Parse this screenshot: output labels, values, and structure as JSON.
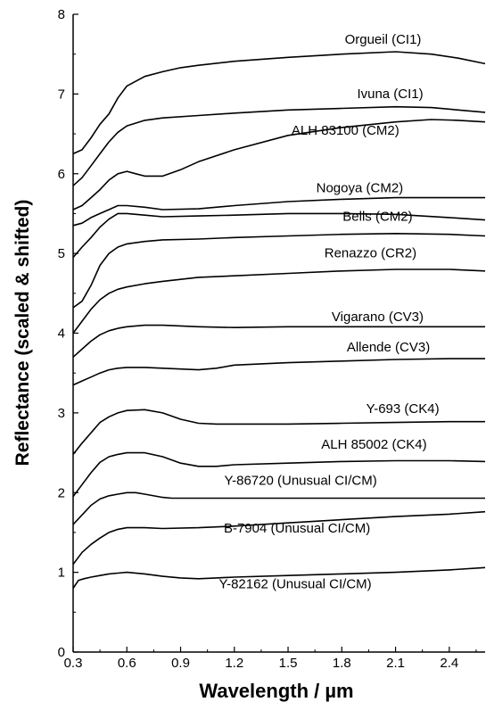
{
  "chart_data": {
    "type": "line",
    "xlabel": "Wavelength / µm",
    "ylabel": "Reflectance (scaled & shifted)",
    "xlim": [
      0.3,
      2.6
    ],
    "ylim": [
      0,
      8
    ],
    "x_ticks": [
      "0.3",
      "0.6",
      "0.9",
      "1.2",
      "1.5",
      "1.8",
      "2.1",
      "2.4"
    ],
    "x_tick_values": [
      0.3,
      0.6,
      0.9,
      1.2,
      1.5,
      1.8,
      2.1,
      2.4
    ],
    "y_ticks": [
      "0",
      "1",
      "2",
      "3",
      "4",
      "5",
      "6",
      "7",
      "8"
    ],
    "y_tick_values": [
      0,
      1,
      2,
      3,
      4,
      5,
      6,
      7,
      8
    ],
    "grid": false,
    "legend": "none",
    "series": [
      {
        "name": "Orgueil (CI1)",
        "label_at": [
          2.03,
          7.63
        ],
        "x": [
          0.3,
          0.35,
          0.4,
          0.45,
          0.5,
          0.55,
          0.6,
          0.7,
          0.8,
          0.9,
          1.0,
          1.2,
          1.5,
          1.8,
          2.1,
          2.3,
          2.45,
          2.6
        ],
        "y": [
          6.25,
          6.3,
          6.45,
          6.62,
          6.75,
          6.95,
          7.1,
          7.22,
          7.28,
          7.33,
          7.36,
          7.41,
          7.46,
          7.5,
          7.53,
          7.5,
          7.45,
          7.38
        ]
      },
      {
        "name": "Ivuna (CI1)",
        "label_at": [
          2.07,
          6.95
        ],
        "x": [
          0.3,
          0.35,
          0.4,
          0.45,
          0.5,
          0.55,
          0.6,
          0.7,
          0.8,
          1.0,
          1.2,
          1.5,
          1.8,
          2.1,
          2.3,
          2.45,
          2.6
        ],
        "y": [
          5.85,
          5.95,
          6.1,
          6.25,
          6.4,
          6.52,
          6.6,
          6.67,
          6.7,
          6.73,
          6.76,
          6.8,
          6.82,
          6.84,
          6.83,
          6.8,
          6.77
        ]
      },
      {
        "name": "ALH 83100 (CM2)",
        "label_at": [
          1.82,
          6.49
        ],
        "x": [
          0.3,
          0.35,
          0.4,
          0.45,
          0.5,
          0.55,
          0.6,
          0.65,
          0.7,
          0.8,
          0.9,
          1.0,
          1.2,
          1.5,
          1.8,
          2.1,
          2.3,
          2.45,
          2.6
        ],
        "y": [
          5.55,
          5.6,
          5.7,
          5.8,
          5.92,
          6.0,
          6.03,
          6.0,
          5.97,
          5.97,
          6.05,
          6.15,
          6.3,
          6.48,
          6.58,
          6.65,
          6.68,
          6.67,
          6.65
        ]
      },
      {
        "name": "Nogoya (CM2)",
        "label_at": [
          1.9,
          5.77
        ],
        "x": [
          0.3,
          0.35,
          0.4,
          0.45,
          0.5,
          0.55,
          0.6,
          0.7,
          0.8,
          1.0,
          1.2,
          1.5,
          1.8,
          2.1,
          2.3,
          2.6
        ],
        "y": [
          5.35,
          5.38,
          5.45,
          5.5,
          5.55,
          5.6,
          5.6,
          5.58,
          5.55,
          5.56,
          5.6,
          5.65,
          5.68,
          5.7,
          5.7,
          5.7
        ]
      },
      {
        "name": "Bells (CM2)",
        "label_at": [
          2.0,
          5.41
        ],
        "x": [
          0.3,
          0.35,
          0.4,
          0.45,
          0.5,
          0.55,
          0.6,
          0.7,
          0.8,
          1.0,
          1.2,
          1.5,
          1.8,
          2.1,
          2.4,
          2.6
        ],
        "y": [
          4.95,
          5.08,
          5.2,
          5.33,
          5.43,
          5.5,
          5.5,
          5.48,
          5.46,
          5.47,
          5.48,
          5.5,
          5.5,
          5.49,
          5.45,
          5.42
        ]
      },
      {
        "name": "Renazzo (CR2)",
        "label_at": [
          1.96,
          4.95
        ],
        "x": [
          0.3,
          0.35,
          0.4,
          0.45,
          0.5,
          0.55,
          0.6,
          0.7,
          0.8,
          1.0,
          1.2,
          1.5,
          1.8,
          2.1,
          2.4,
          2.6
        ],
        "y": [
          4.32,
          4.4,
          4.6,
          4.85,
          5.0,
          5.08,
          5.12,
          5.15,
          5.17,
          5.18,
          5.2,
          5.22,
          5.24,
          5.25,
          5.24,
          5.22
        ]
      },
      {
        "name": "Vigarano (CV3)",
        "label_at": [
          2.0,
          4.15
        ],
        "x": [
          0.3,
          0.35,
          0.4,
          0.45,
          0.5,
          0.55,
          0.6,
          0.7,
          0.8,
          1.0,
          1.2,
          1.5,
          1.8,
          2.1,
          2.4,
          2.6
        ],
        "y": [
          4.0,
          4.15,
          4.3,
          4.42,
          4.5,
          4.55,
          4.58,
          4.62,
          4.65,
          4.7,
          4.72,
          4.75,
          4.78,
          4.8,
          4.8,
          4.78
        ]
      },
      {
        "name": "Allende (CV3)",
        "label_at": [
          2.06,
          3.77
        ],
        "x": [
          0.3,
          0.35,
          0.4,
          0.45,
          0.5,
          0.55,
          0.6,
          0.7,
          0.8,
          1.0,
          1.2,
          1.5,
          1.8,
          2.1,
          2.4,
          2.6
        ],
        "y": [
          3.7,
          3.8,
          3.9,
          3.98,
          4.03,
          4.06,
          4.08,
          4.1,
          4.1,
          4.08,
          4.07,
          4.08,
          4.08,
          4.08,
          4.08,
          4.08
        ]
      },
      {
        "name": "Y-693 (CK4)",
        "label_at": [
          2.14,
          3.0
        ],
        "x": [
          0.3,
          0.35,
          0.4,
          0.45,
          0.5,
          0.55,
          0.6,
          0.7,
          0.8,
          0.9,
          1.0,
          1.1,
          1.2,
          1.5,
          1.8,
          2.1,
          2.4,
          2.6
        ],
        "y": [
          3.35,
          3.4,
          3.45,
          3.5,
          3.54,
          3.56,
          3.57,
          3.57,
          3.56,
          3.55,
          3.54,
          3.56,
          3.6,
          3.63,
          3.65,
          3.67,
          3.68,
          3.68
        ]
      },
      {
        "name": "ALH 85002 (CK4)",
        "label_at": [
          1.98,
          2.55
        ],
        "x": [
          0.3,
          0.35,
          0.4,
          0.45,
          0.5,
          0.55,
          0.6,
          0.7,
          0.8,
          0.9,
          1.0,
          1.1,
          1.2,
          1.5,
          1.8,
          2.1,
          2.4,
          2.6
        ],
        "y": [
          2.48,
          2.62,
          2.75,
          2.88,
          2.95,
          3.0,
          3.03,
          3.04,
          3.0,
          2.92,
          2.87,
          2.86,
          2.86,
          2.86,
          2.87,
          2.88,
          2.89,
          2.89
        ]
      },
      {
        "name": "Y-86720 (Unusual CI/CM)",
        "label_at": [
          1.57,
          2.1
        ],
        "x": [
          0.3,
          0.35,
          0.4,
          0.45,
          0.5,
          0.55,
          0.6,
          0.7,
          0.8,
          0.9,
          1.0,
          1.1,
          1.2,
          1.5,
          1.8,
          2.1,
          2.4,
          2.6
        ],
        "y": [
          1.95,
          2.1,
          2.25,
          2.38,
          2.45,
          2.48,
          2.5,
          2.5,
          2.45,
          2.37,
          2.33,
          2.33,
          2.35,
          2.37,
          2.39,
          2.4,
          2.4,
          2.39
        ]
      },
      {
        "name": "B-7904 (Unusual CI/CM)",
        "label_at": [
          1.55,
          1.5
        ],
        "x": [
          0.3,
          0.35,
          0.4,
          0.45,
          0.5,
          0.55,
          0.6,
          0.65,
          0.7,
          0.8,
          0.85,
          1.0,
          1.2,
          1.5,
          1.8,
          2.1,
          2.4,
          2.6
        ],
        "y": [
          1.6,
          1.72,
          1.84,
          1.92,
          1.96,
          1.98,
          2.0,
          2.0,
          1.98,
          1.94,
          1.93,
          1.93,
          1.93,
          1.93,
          1.93,
          1.93,
          1.93,
          1.93
        ]
      },
      {
        "name": "Y-82162 (Unusual CI/CM)",
        "label_at": [
          1.54,
          0.8
        ],
        "x": [
          0.3,
          0.35,
          0.4,
          0.45,
          0.5,
          0.55,
          0.6,
          0.7,
          0.8,
          1.0,
          1.2,
          1.5,
          1.8,
          2.1,
          2.4,
          2.6
        ],
        "y": [
          1.1,
          1.25,
          1.35,
          1.43,
          1.5,
          1.54,
          1.56,
          1.56,
          1.55,
          1.56,
          1.58,
          1.62,
          1.66,
          1.7,
          1.73,
          1.76
        ]
      },
      {
        "name": "",
        "label_at": null,
        "x": [
          0.3,
          0.33,
          0.36,
          0.4,
          0.45,
          0.5,
          0.55,
          0.6,
          0.7,
          0.8,
          0.9,
          1.0,
          1.1,
          1.2,
          1.5,
          1.8,
          2.1,
          2.4,
          2.6
        ],
        "y": [
          0.8,
          0.9,
          0.92,
          0.94,
          0.96,
          0.98,
          0.99,
          1.0,
          0.98,
          0.95,
          0.93,
          0.92,
          0.93,
          0.94,
          0.96,
          0.98,
          1.0,
          1.03,
          1.06
        ]
      }
    ]
  }
}
